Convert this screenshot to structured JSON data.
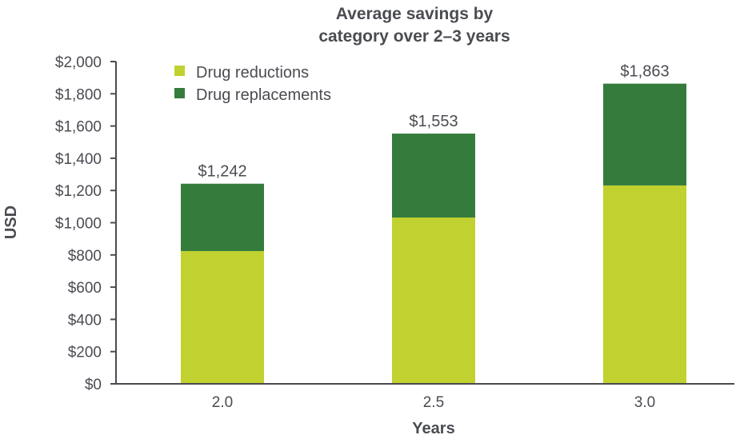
{
  "chart_data": {
    "type": "bar",
    "stacked": true,
    "title": [
      "Average savings by",
      "category over 2–3 years"
    ],
    "xlabel": "Years",
    "ylabel": "USD",
    "categories": [
      "2.0",
      "2.5",
      "3.0"
    ],
    "series": [
      {
        "name": "Drug reductions",
        "color": "#c1d12f",
        "values": [
          824,
          1032,
          1231
        ]
      },
      {
        "name": "Drug replacements",
        "color": "#357c3c",
        "values": [
          418,
          521,
          632
        ]
      }
    ],
    "totals": [
      1242,
      1553,
      1863
    ],
    "total_labels": [
      "$1,242",
      "$1,553",
      "$1,863"
    ],
    "ylim": [
      0,
      2000
    ],
    "yticks": [
      0,
      200,
      400,
      600,
      800,
      1000,
      1200,
      1400,
      1600,
      1800,
      2000
    ],
    "ytick_labels": [
      "$0",
      "$200",
      "$400",
      "$600",
      "$800",
      "$1,000",
      "$1,200",
      "$1,400",
      "$1,600",
      "$1,800",
      "$2,000"
    ],
    "legend_position": "top-left",
    "grid": false
  }
}
